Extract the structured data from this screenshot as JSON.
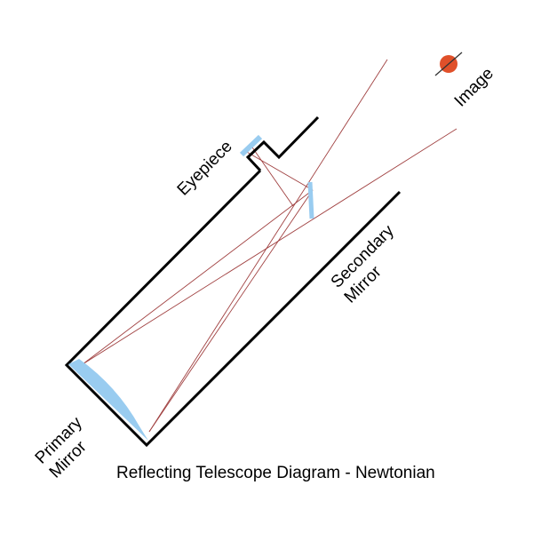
{
  "title": "Reflecting Telescope Diagram - Newtonian",
  "labels": {
    "image": "Image",
    "eyepiece": "Eyepiece",
    "secondary_mirror_line1": "Secondary",
    "secondary_mirror_line2": "Mirror",
    "primary_mirror_line1": "Primary",
    "primary_mirror_line2": "Mirror"
  },
  "colors": {
    "tube": "#000000",
    "mirror": "#99ccf0",
    "ray": "#a04040",
    "planet": "#e0502a",
    "planet_ring": "#333333"
  },
  "icons": {
    "planet": "saturn-planet-icon"
  }
}
